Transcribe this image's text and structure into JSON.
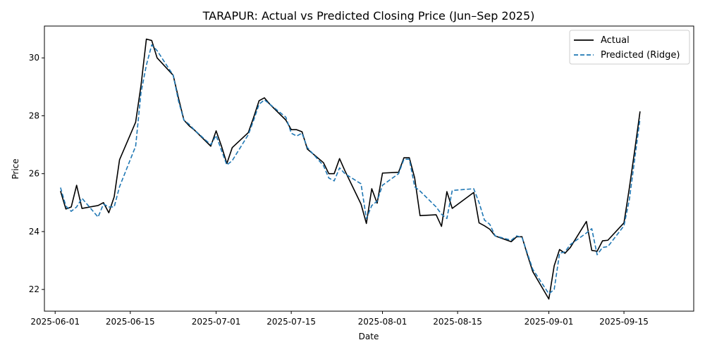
{
  "chart_data": {
    "type": "line",
    "title": "TARAPUR: Actual vs Predicted Closing Price (Jun–Sep 2025)",
    "xlabel": "Date",
    "ylabel": "Price",
    "xlim": [
      "2025-05-30",
      "2025-09-28"
    ],
    "ylim": [
      21.25,
      31.1
    ],
    "xticks": [
      "2025-06-01",
      "2025-06-15",
      "2025-07-01",
      "2025-07-15",
      "2025-08-01",
      "2025-08-15",
      "2025-09-01",
      "2025-09-15"
    ],
    "yticks": [
      22,
      24,
      26,
      28,
      30
    ],
    "legend": "top-right",
    "grid": false,
    "x": [
      "2025-06-02",
      "2025-06-03",
      "2025-06-04",
      "2025-06-05",
      "2025-06-06",
      "2025-06-09",
      "2025-06-10",
      "2025-06-11",
      "2025-06-12",
      "2025-06-13",
      "2025-06-16",
      "2025-06-17",
      "2025-06-18",
      "2025-06-19",
      "2025-06-20",
      "2025-06-23",
      "2025-06-24",
      "2025-06-25",
      "2025-06-26",
      "2025-06-27",
      "2025-06-30",
      "2025-07-01",
      "2025-07-02",
      "2025-07-03",
      "2025-07-04",
      "2025-07-07",
      "2025-07-08",
      "2025-07-09",
      "2025-07-10",
      "2025-07-11",
      "2025-07-14",
      "2025-07-15",
      "2025-07-16",
      "2025-07-17",
      "2025-07-18",
      "2025-07-21",
      "2025-07-22",
      "2025-07-23",
      "2025-07-24",
      "2025-07-25",
      "2025-07-28",
      "2025-07-29",
      "2025-07-30",
      "2025-07-31",
      "2025-08-01",
      "2025-08-04",
      "2025-08-05",
      "2025-08-06",
      "2025-08-07",
      "2025-08-08",
      "2025-08-11",
      "2025-08-12",
      "2025-08-13",
      "2025-08-14",
      "2025-08-18",
      "2025-08-19",
      "2025-08-20",
      "2025-08-21",
      "2025-08-22",
      "2025-08-25",
      "2025-08-26",
      "2025-08-27",
      "2025-08-28",
      "2025-08-29",
      "2025-09-01",
      "2025-09-02",
      "2025-09-03",
      "2025-09-04",
      "2025-09-05",
      "2025-09-08",
      "2025-09-09",
      "2025-09-10",
      "2025-09-11",
      "2025-09-12",
      "2025-09-15",
      "2025-09-16",
      "2025-09-17",
      "2025-09-18"
    ],
    "series": [
      {
        "name": "Actual",
        "color": "#000000",
        "dash": "solid",
        "values": [
          25.4,
          24.78,
          24.85,
          25.6,
          24.8,
          24.9,
          25.0,
          24.65,
          25.2,
          26.48,
          27.78,
          29.05,
          30.65,
          30.6,
          30.0,
          29.4,
          28.6,
          27.85,
          27.65,
          27.5,
          26.95,
          27.48,
          26.95,
          26.35,
          26.9,
          27.42,
          27.95,
          28.52,
          28.62,
          28.4,
          27.85,
          27.52,
          27.52,
          27.45,
          26.85,
          26.38,
          26.0,
          26.0,
          26.52,
          26.1,
          24.95,
          24.28,
          25.48,
          24.98,
          26.02,
          26.05,
          26.55,
          26.55,
          25.85,
          24.55,
          24.58,
          24.18,
          25.38,
          24.8,
          25.35,
          24.3,
          24.2,
          24.08,
          23.85,
          23.65,
          23.82,
          23.82,
          23.2,
          22.62,
          21.67,
          22.82,
          23.38,
          23.25,
          23.45,
          24.35,
          23.35,
          23.32,
          23.68,
          23.7,
          24.3,
          25.5,
          26.8,
          28.15
        ]
      },
      {
        "name": "Predicted (Ridge)",
        "color": "#1f77b4",
        "dash": "dashed",
        "values": [
          25.52,
          24.88,
          24.7,
          24.85,
          25.15,
          24.5,
          24.95,
          24.85,
          24.85,
          25.55,
          26.95,
          28.8,
          29.75,
          30.45,
          30.25,
          29.4,
          28.5,
          27.85,
          27.7,
          27.5,
          27.0,
          27.32,
          26.8,
          26.3,
          26.45,
          27.35,
          27.85,
          28.4,
          28.55,
          28.4,
          27.95,
          27.4,
          27.3,
          27.4,
          26.9,
          26.28,
          25.85,
          25.75,
          26.2,
          26.0,
          25.65,
          24.45,
          24.9,
          25.05,
          25.6,
          26.0,
          26.5,
          26.5,
          25.55,
          25.4,
          24.85,
          24.6,
          24.45,
          25.42,
          25.48,
          25.0,
          24.4,
          24.25,
          23.85,
          23.7,
          23.85,
          23.8,
          23.25,
          22.7,
          21.85,
          22.0,
          23.25,
          23.3,
          23.55,
          23.95,
          24.1,
          23.2,
          23.45,
          23.48,
          24.2,
          25.1,
          26.5,
          27.9
        ]
      }
    ]
  }
}
